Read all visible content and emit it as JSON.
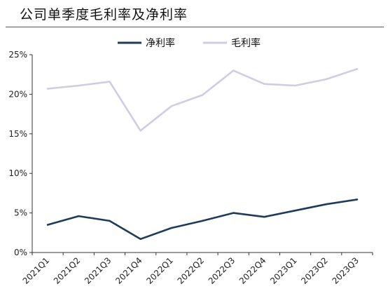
{
  "title": "公司单季度毛利率及净利率",
  "chart_data": {
    "type": "line",
    "categories": [
      "2021Q1",
      "2021Q2",
      "2021Q3",
      "2021Q4",
      "2022Q1",
      "2022Q2",
      "2022Q3",
      "2022Q4",
      "2023Q1",
      "2023Q2",
      "2023Q3"
    ],
    "series": [
      {
        "name": "净利率",
        "color": "#1f3b5c",
        "values": [
          3.5,
          4.6,
          4.0,
          1.7,
          3.1,
          4.0,
          5.0,
          4.5,
          5.3,
          6.1,
          6.7
        ]
      },
      {
        "name": "毛利率",
        "color": "#cfcde6",
        "values": [
          20.7,
          21.1,
          21.6,
          15.4,
          18.5,
          19.9,
          23.0,
          21.3,
          21.1,
          21.9,
          23.2
        ]
      }
    ],
    "yticks": [
      "0%",
      "5%",
      "10%",
      "15%",
      "20%",
      "25%"
    ],
    "ylim": [
      0,
      25
    ],
    "legend": "top",
    "grid": false
  }
}
